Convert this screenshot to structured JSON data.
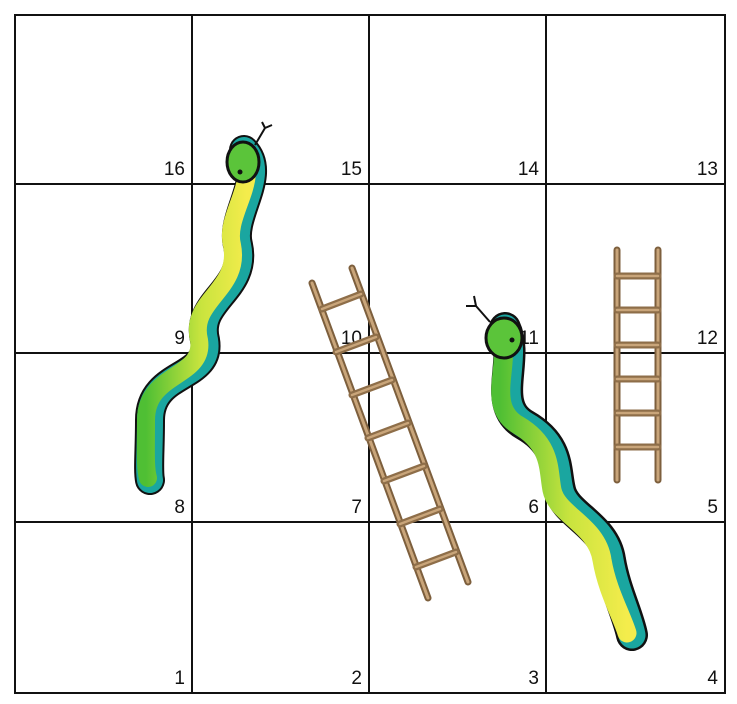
{
  "board": {
    "rows": [
      [
        "16",
        "15",
        "14",
        "13"
      ],
      [
        "9",
        "10",
        "11",
        "12"
      ],
      [
        "8",
        "7",
        "6",
        "5"
      ],
      [
        "1",
        "2",
        "3",
        "4"
      ]
    ]
  },
  "colors": {
    "grid": "#111111",
    "ladder_wood": "#9a7a55",
    "snake_body_light": "#f2ea4a",
    "snake_body_green": "#5bc43a",
    "snake_stripe": "#1aa6a0",
    "snake_outline": "#111111"
  },
  "pieces": {
    "snakes": [
      {
        "name": "snake-left",
        "head_cell": "15",
        "tail_cell": "8"
      },
      {
        "name": "snake-right",
        "head_cell": "11",
        "tail_cell": "4"
      }
    ],
    "ladders": [
      {
        "name": "ladder-diagonal",
        "bottom_cell": "3",
        "top_cell": "10"
      },
      {
        "name": "ladder-vertical",
        "bottom_cell": "5",
        "top_cell": "12"
      }
    ]
  }
}
